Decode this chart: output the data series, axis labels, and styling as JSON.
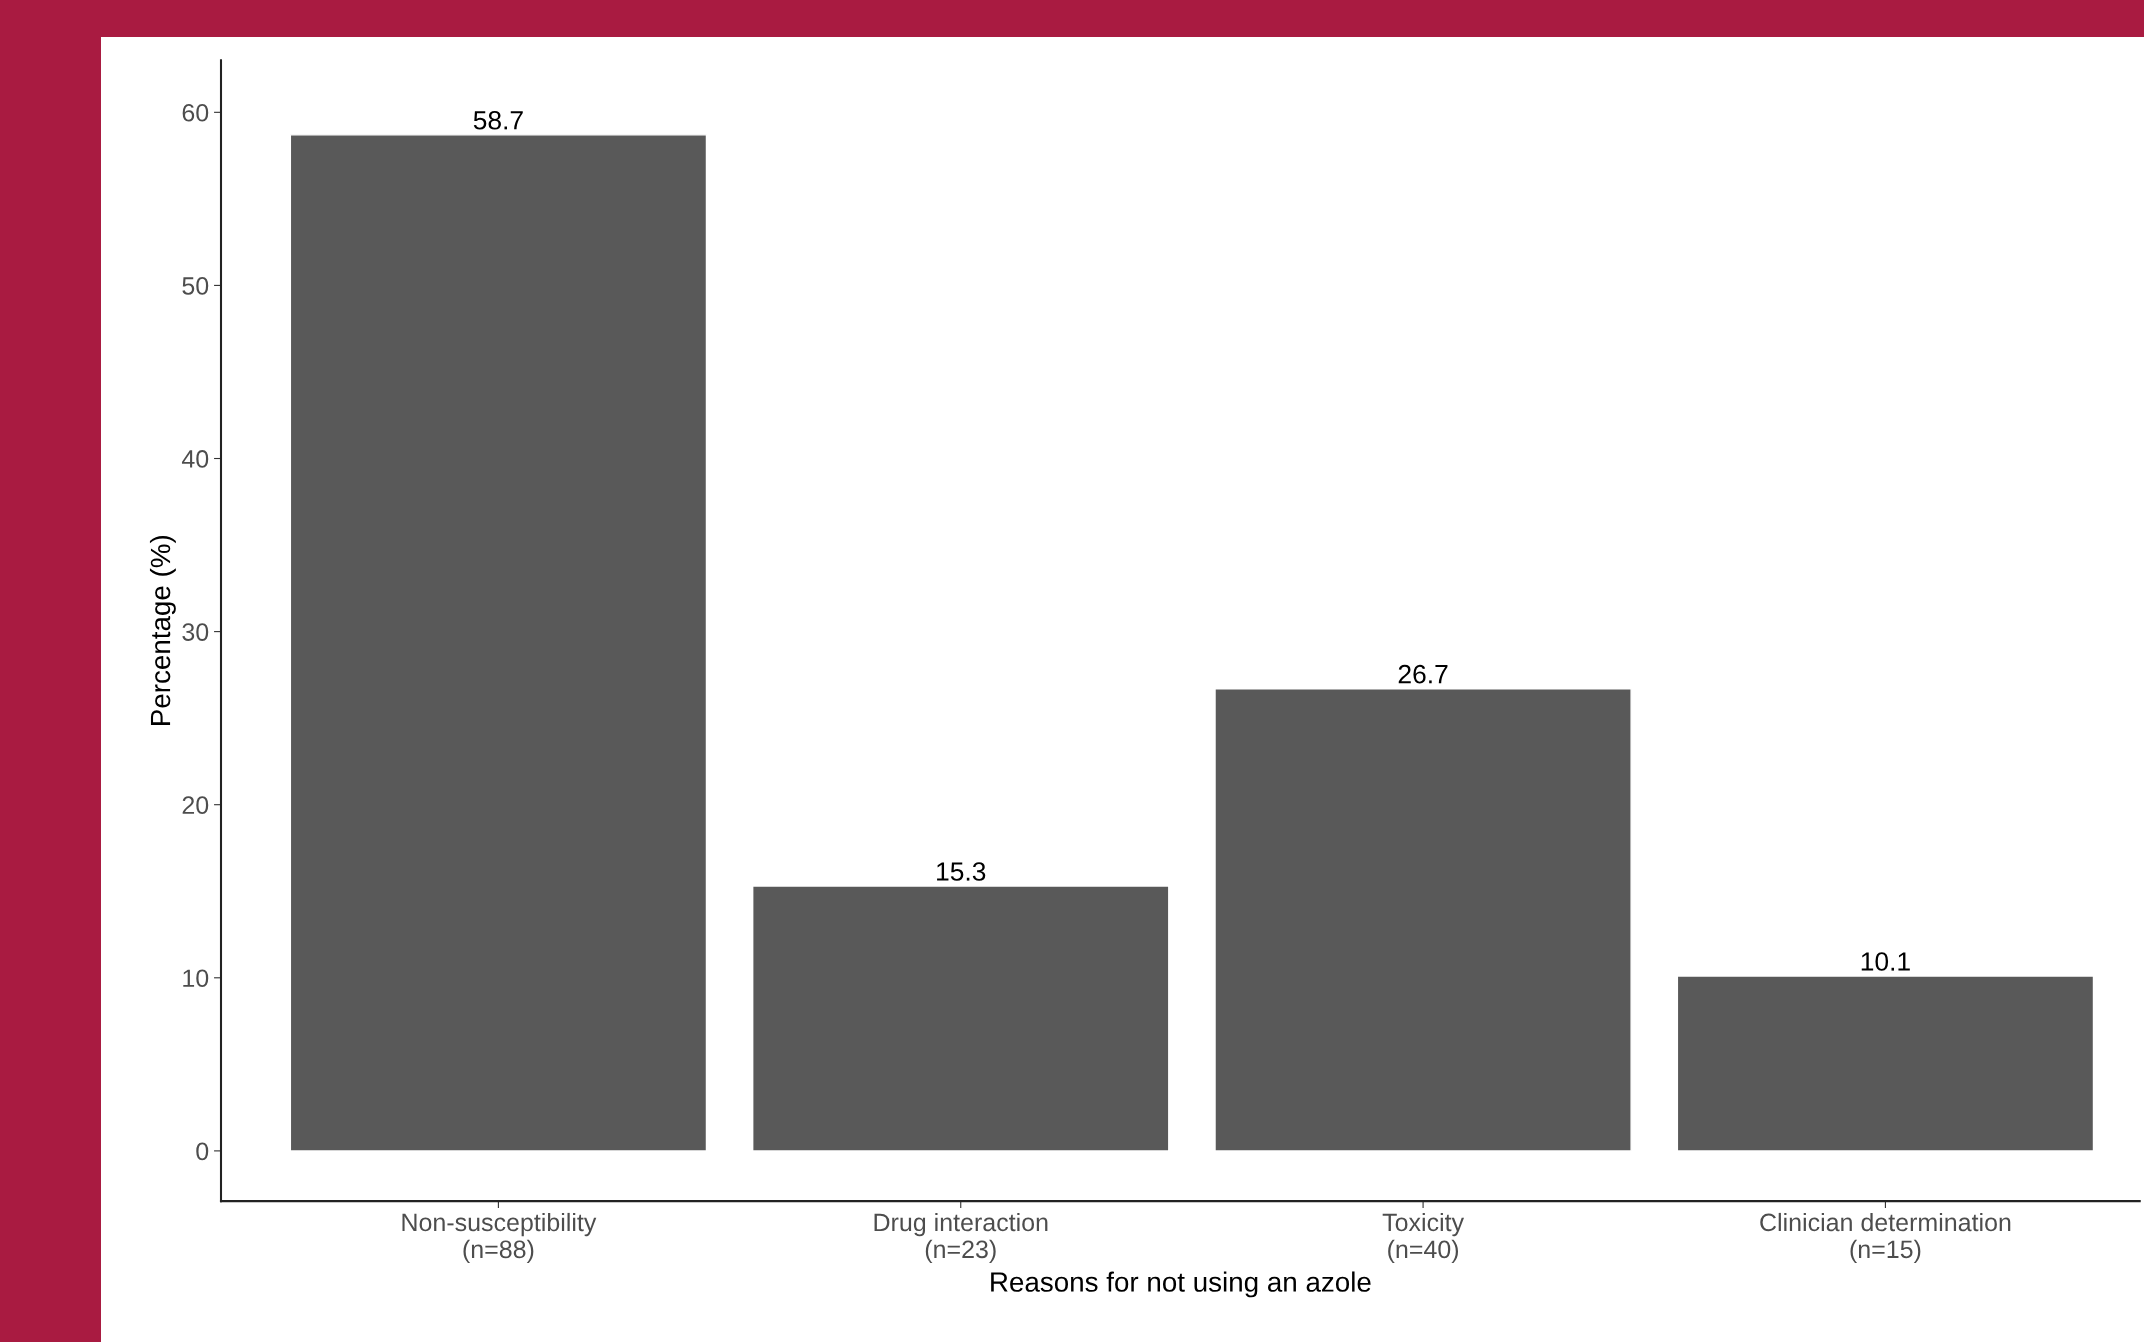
{
  "chart_data": {
    "type": "bar",
    "categories": [
      "Non-susceptibility\n(n=88)",
      "Drug interaction\n(n=23)",
      "Toxicity\n(n=40)",
      "Clinician determination\n(n=15)"
    ],
    "values": [
      58.7,
      15.3,
      26.7,
      10.1
    ],
    "color": "#595959",
    "xlabel": "Reasons for not using an azole",
    "ylabel": "Percentage (%)",
    "ylim": [
      -2.9,
      63
    ],
    "yticks": [
      0,
      10,
      20,
      30,
      40,
      50,
      60
    ],
    "data_labels": true,
    "grid": false
  }
}
